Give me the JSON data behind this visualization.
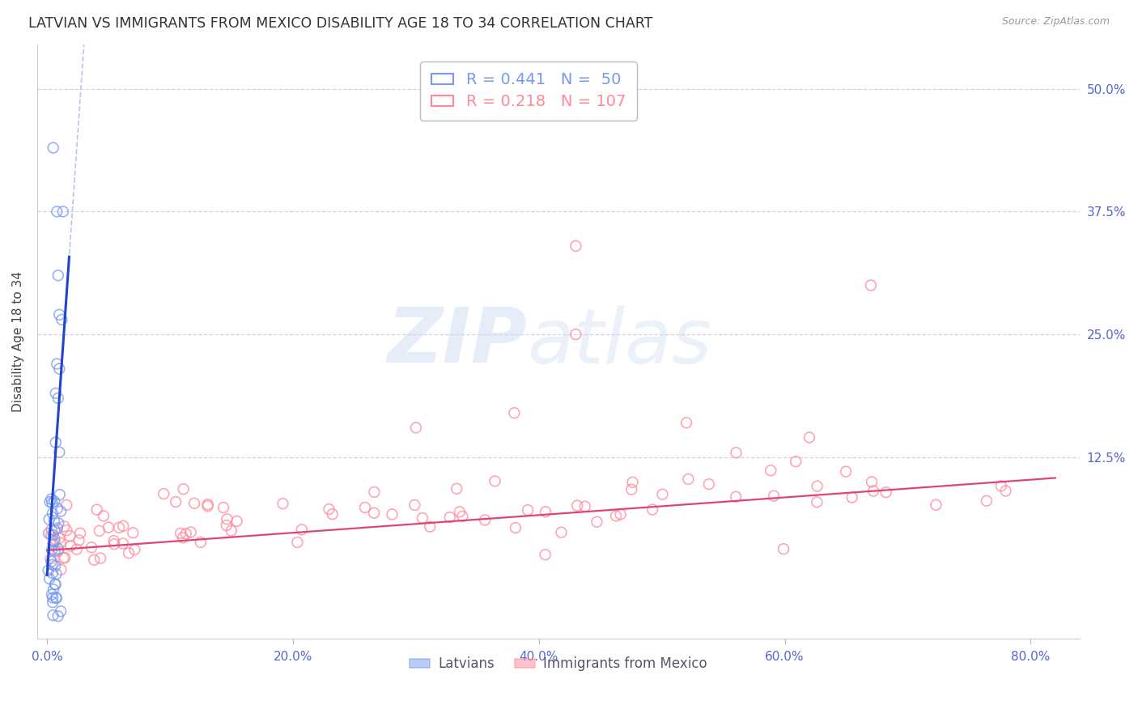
{
  "title": "LATVIAN VS IMMIGRANTS FROM MEXICO DISABILITY AGE 18 TO 34 CORRELATION CHART",
  "source": "Source: ZipAtlas.com",
  "ylabel": "Disability Age 18 to 34",
  "xlabel_ticks": [
    "0.0%",
    "20.0%",
    "40.0%",
    "60.0%",
    "80.0%"
  ],
  "xlabel_vals": [
    0.0,
    0.2,
    0.4,
    0.6,
    0.8
  ],
  "ylabel_ticks": [
    "12.5%",
    "25.0%",
    "37.5%",
    "50.0%"
  ],
  "ylabel_vals": [
    0.125,
    0.25,
    0.375,
    0.5
  ],
  "xlim": [
    -0.008,
    0.84
  ],
  "ylim": [
    -0.06,
    0.545
  ],
  "latvian_color": "#7799ee",
  "mexico_color": "#ff8899",
  "latvian_line_color": "#2244cc",
  "mexico_line_color": "#dd4477",
  "latvian_dash_color": "#aabbee",
  "latvian_R": 0.441,
  "latvian_N": 50,
  "mexico_R": 0.218,
  "mexico_N": 107,
  "legend_labels": [
    "Latvians",
    "Immigrants from Mexico"
  ],
  "watermark_ZIP": "ZIP",
  "watermark_atlas": "atlas",
  "title_fontsize": 12.5,
  "label_fontsize": 11,
  "tick_fontsize": 11,
  "tick_color": "#5566cc",
  "background_color": "#ffffff"
}
